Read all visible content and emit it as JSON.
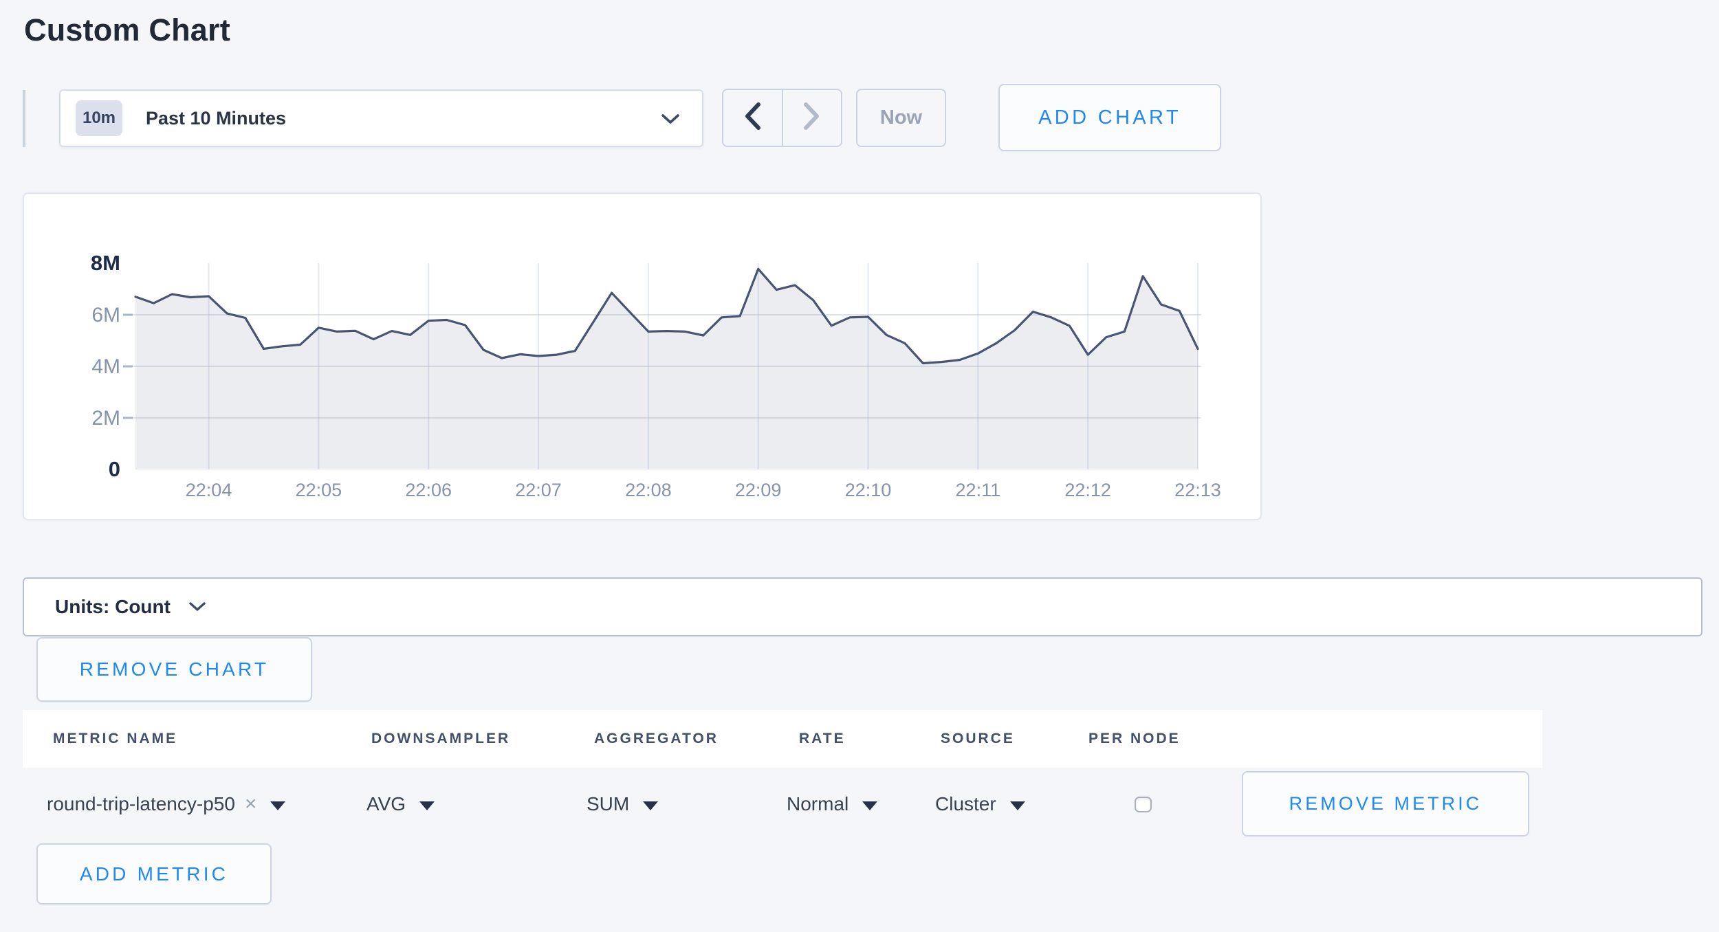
{
  "page": {
    "title": "Custom Chart"
  },
  "toolbar": {
    "time_badge": "10m",
    "time_range_label": "Past 10 Minutes",
    "now_label": "Now",
    "add_chart_label": "ADD CHART"
  },
  "chart_data": {
    "type": "area",
    "title": "",
    "series": [
      {
        "name": "round-trip-latency-p50 (SUM of AVG, Cluster)",
        "unit": "count, millions",
        "values": [
          6.7,
          6.45,
          6.8,
          6.68,
          6.72,
          6.05,
          5.88,
          4.68,
          4.78,
          4.84,
          5.5,
          5.35,
          5.38,
          5.05,
          5.37,
          5.22,
          5.77,
          5.8,
          5.6,
          4.64,
          4.32,
          4.47,
          4.4,
          4.45,
          4.6,
          5.72,
          6.85,
          6.1,
          5.35,
          5.37,
          5.35,
          5.2,
          5.9,
          5.95,
          7.78,
          6.97,
          7.15,
          6.57,
          5.58,
          5.9,
          5.92,
          5.22,
          4.9,
          4.12,
          4.17,
          4.25,
          4.5,
          4.9,
          5.4,
          6.12,
          5.9,
          5.57,
          4.45,
          5.13,
          5.35,
          7.5,
          6.4,
          6.15,
          4.68
        ]
      }
    ],
    "x_start_minute": 3.3333,
    "x_step_minute": 0.16667,
    "x_start_time": "22:03:20",
    "x_end_time": "22:13:00",
    "sample_interval": "10s",
    "x_ticks": [
      {
        "minute": 4,
        "label": "22:04"
      },
      {
        "minute": 5,
        "label": "22:05"
      },
      {
        "minute": 6,
        "label": "22:06"
      },
      {
        "minute": 7,
        "label": "22:07"
      },
      {
        "minute": 8,
        "label": "22:08"
      },
      {
        "minute": 9,
        "label": "22:09"
      },
      {
        "minute": 10,
        "label": "22:10"
      },
      {
        "minute": 11,
        "label": "22:11"
      },
      {
        "minute": 12,
        "label": "22:12"
      },
      {
        "minute": 13,
        "label": "22:13"
      }
    ],
    "y_ticks": [
      {
        "value": 0,
        "label": "0",
        "bold": true
      },
      {
        "value": 2,
        "label": "2M",
        "bold": false
      },
      {
        "value": 4,
        "label": "4M",
        "bold": false
      },
      {
        "value": 6,
        "label": "6M",
        "bold": false
      },
      {
        "value": 8,
        "label": "8M",
        "bold": true
      }
    ],
    "ylim_millions": [
      0,
      8
    ],
    "grid": true,
    "legend": "none",
    "line_color": "#475472",
    "fill_color": "rgba(105,118,150,0.13)"
  },
  "units_bar": {
    "label": "Units: Count"
  },
  "chart_actions": {
    "remove_chart_label": "REMOVE CHART"
  },
  "metrics_table": {
    "columns": [
      "METRIC NAME",
      "DOWNSAMPLER",
      "AGGREGATOR",
      "RATE",
      "SOURCE",
      "PER NODE"
    ],
    "row": {
      "metric_name": "round-trip-latency-p50",
      "remove_tag_x": "×",
      "downsampler": "AVG",
      "aggregator": "SUM",
      "rate": "Normal",
      "source": "Cluster",
      "per_node_checked": false,
      "remove_metric_label": "REMOVE METRIC"
    },
    "add_metric_label": "ADD METRIC"
  },
  "colors": {
    "accent_blue": "#1f88f3",
    "page_bg": "#f4f6fa",
    "muted_text": "#99a3b3",
    "axis_text": "#8593ab",
    "axis_text_bold": "#1e2c4b"
  }
}
